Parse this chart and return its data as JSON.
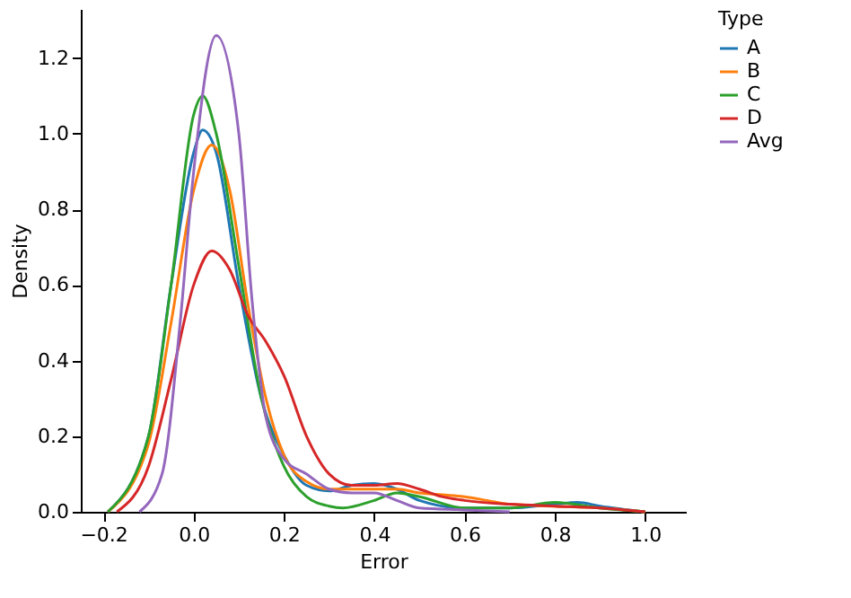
{
  "chart_data": {
    "type": "line",
    "xlabel": "Error",
    "ylabel": "Density",
    "legend_title": "Type",
    "legend": "right",
    "grid": false,
    "line_style": "solid",
    "marker": "none",
    "xlim": [
      -0.25,
      1.09
    ],
    "ylim": [
      0,
      1.33
    ],
    "xticks": [
      {
        "value": -0.2,
        "label": "−0.2"
      },
      {
        "value": 0,
        "label": "0.0"
      },
      0.2,
      0.4,
      0.6,
      0.8,
      {
        "value": 1,
        "label": "1.0"
      }
    ],
    "yticks": [
      {
        "value": 0,
        "label": "0.0"
      },
      0.2,
      0.4,
      0.6,
      0.8,
      {
        "value": 1,
        "label": "1.0"
      },
      1.2
    ],
    "series": [
      {
        "name": "A",
        "color": "#1f77b4",
        "x": [
          -0.19,
          -0.1,
          -0.05,
          0,
          0.02,
          0.05,
          0.1,
          0.15,
          0.2,
          0.25,
          0.3,
          0.35,
          0.4,
          0.45,
          0.5,
          0.6,
          0.7,
          0.8,
          0.85,
          0.9,
          1.0
        ],
        "values": [
          0,
          0.2,
          0.6,
          0.95,
          1.01,
          0.95,
          0.6,
          0.3,
          0.15,
          0.07,
          0.055,
          0.07,
          0.075,
          0.06,
          0.03,
          0.01,
          0.01,
          0.02,
          0.025,
          0.015,
          0
        ]
      },
      {
        "name": "B",
        "color": "#ff7f0e",
        "x": [
          -0.19,
          -0.1,
          -0.05,
          0,
          0.04,
          0.08,
          0.12,
          0.16,
          0.2,
          0.25,
          0.3,
          0.35,
          0.4,
          0.45,
          0.5,
          0.55,
          0.6,
          0.65,
          0.7,
          0.8,
          0.9,
          1.0
        ],
        "values": [
          0,
          0.18,
          0.5,
          0.85,
          0.97,
          0.85,
          0.55,
          0.3,
          0.15,
          0.08,
          0.06,
          0.06,
          0.06,
          0.06,
          0.05,
          0.045,
          0.04,
          0.03,
          0.02,
          0.015,
          0.01,
          0
        ]
      },
      {
        "name": "C",
        "color": "#2ca02c",
        "x": [
          -0.19,
          -0.1,
          -0.05,
          0,
          0.02,
          0.05,
          0.1,
          0.15,
          0.2,
          0.25,
          0.3,
          0.33,
          0.4,
          0.45,
          0.5,
          0.6,
          0.7,
          0.8,
          0.9,
          1.0
        ],
        "values": [
          0,
          0.2,
          0.6,
          1.05,
          1.1,
          1.0,
          0.65,
          0.3,
          0.12,
          0.04,
          0.015,
          0.01,
          0.03,
          0.05,
          0.04,
          0.01,
          0.01,
          0.025,
          0.01,
          0
        ]
      },
      {
        "name": "D",
        "color": "#d62728",
        "x": [
          -0.17,
          -0.1,
          -0.05,
          0,
          0.04,
          0.08,
          0.12,
          0.16,
          0.2,
          0.25,
          0.3,
          0.35,
          0.4,
          0.45,
          0.5,
          0.55,
          0.6,
          0.7,
          0.8,
          0.9,
          1.0
        ],
        "values": [
          0,
          0.12,
          0.35,
          0.6,
          0.69,
          0.64,
          0.52,
          0.45,
          0.36,
          0.2,
          0.1,
          0.07,
          0.07,
          0.075,
          0.06,
          0.04,
          0.03,
          0.02,
          0.015,
          0.01,
          0
        ]
      },
      {
        "name": "Avg",
        "color": "#9467bd",
        "x": [
          -0.12,
          -0.07,
          -0.03,
          0,
          0.05,
          0.1,
          0.13,
          0.16,
          0.2,
          0.25,
          0.3,
          0.35,
          0.4,
          0.45,
          0.5,
          0.6,
          0.7
        ],
        "values": [
          0,
          0.1,
          0.5,
          0.9,
          1.26,
          1.0,
          0.55,
          0.25,
          0.14,
          0.1,
          0.06,
          0.05,
          0.05,
          0.03,
          0.01,
          0.005,
          0
        ]
      }
    ]
  }
}
